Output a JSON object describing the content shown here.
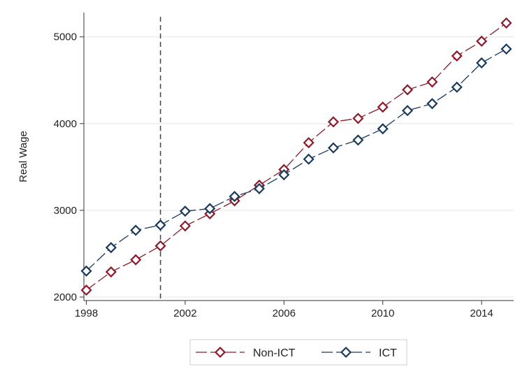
{
  "chart_data": {
    "type": "line",
    "title": "",
    "xlabel": "",
    "ylabel": "Real Wage",
    "x": [
      1998,
      1999,
      2000,
      2001,
      2002,
      2003,
      2004,
      2005,
      2006,
      2007,
      2008,
      2009,
      2010,
      2011,
      2012,
      2013,
      2014,
      2015
    ],
    "xticks": [
      1998,
      2002,
      2006,
      2010,
      2014
    ],
    "yticks": [
      2000,
      3000,
      4000,
      5000
    ],
    "xlim": [
      1997.9,
      2015.3
    ],
    "ylim": [
      1960,
      5280
    ],
    "grid": true,
    "reference_line": {
      "x": 2001,
      "style": "dashed"
    },
    "legend_position": "bottom",
    "series": [
      {
        "name": "Non-ICT",
        "color": "#8b1a2b",
        "marker": "hollow-diamond",
        "line_style": "long-dash",
        "values": [
          2080,
          2290,
          2430,
          2590,
          2820,
          2960,
          3110,
          3290,
          3470,
          3780,
          4020,
          4060,
          4190,
          4390,
          4480,
          4780,
          4950,
          5160
        ]
      },
      {
        "name": "ICT",
        "color": "#1a3a5c",
        "marker": "hollow-diamond",
        "line_style": "long-dash",
        "values": [
          2300,
          2570,
          2770,
          2830,
          2990,
          3020,
          3160,
          3250,
          3410,
          3590,
          3720,
          3810,
          3940,
          4150,
          4230,
          4420,
          4700,
          4860
        ]
      }
    ]
  }
}
